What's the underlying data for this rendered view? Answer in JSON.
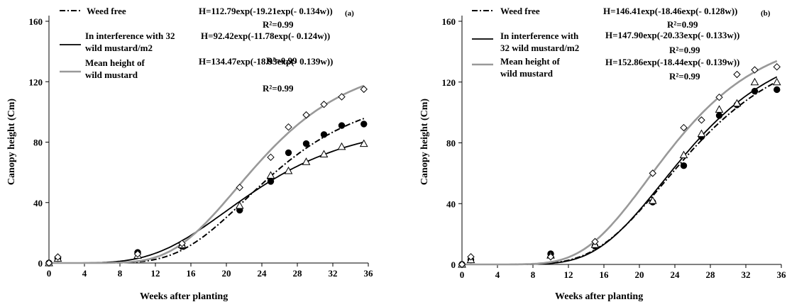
{
  "chart_data": [
    {
      "type": "line",
      "panel_label": "(a)",
      "xlabel": "Weeks after planting",
      "ylabel": "Canopy height (Cm)",
      "xlim": [
        0,
        36
      ],
      "ylim": [
        0,
        160
      ],
      "xticks": [
        "0",
        "4",
        "8",
        "12",
        "16",
        "20",
        "24",
        "28",
        "32",
        "36"
      ],
      "yticks": [
        "0",
        "40",
        "80",
        "120",
        "160"
      ],
      "grid": false,
      "series": [
        {
          "name": "Weed free",
          "line_style": "dash-dot",
          "color": "#000000",
          "marker": "filled-circle",
          "equation": "H=112.79exp(-19.21exp(- 0.134w))",
          "r2": "R²=0.99",
          "x": [
            0,
            1,
            10,
            15,
            21.5,
            25,
            27,
            29,
            31,
            33,
            35.5
          ],
          "y": [
            0,
            3,
            7,
            11,
            35,
            54,
            73,
            79,
            85,
            91,
            92
          ]
        },
        {
          "name": "In interference with 32 wild mustard/m2",
          "line_style": "solid",
          "color": "#000000",
          "marker": "open-triangle",
          "equation": "H=92.42exp(-11.78exp(- 0.124w))",
          "r2": "R²=0.99",
          "x": [
            0,
            1,
            10,
            15,
            21.5,
            25,
            27,
            29,
            31,
            33,
            35.5
          ],
          "y": [
            0,
            3,
            5,
            12,
            38,
            58,
            61,
            67,
            72,
            77,
            79
          ]
        },
        {
          "name": "Mean height of wild mustard",
          "line_style": "solid",
          "color": "#999999",
          "marker": "open-diamond",
          "equation": "H=134.47exp(-18.93exp(- 0.139w))",
          "r2": "R²=0.99",
          "x": [
            0,
            1,
            10,
            15,
            21.5,
            25,
            27,
            29,
            31,
            33,
            35.5
          ],
          "y": [
            0,
            4,
            6,
            13,
            50,
            70,
            90,
            98,
            105,
            110,
            115
          ]
        }
      ]
    },
    {
      "type": "line",
      "panel_label": "(b)",
      "xlabel": "Weeks after planting",
      "ylabel": "Canopy height (Cm)",
      "xlim": [
        0,
        36
      ],
      "ylim": [
        0,
        160
      ],
      "xticks": [
        "0",
        "4",
        "8",
        "12",
        "16",
        "20",
        "24",
        "28",
        "32",
        "36"
      ],
      "yticks": [
        "0",
        "40",
        "80",
        "120",
        "160"
      ],
      "grid": false,
      "series": [
        {
          "name": "Weed free",
          "line_style": "dash-dot",
          "color": "#000000",
          "marker": "filled-circle",
          "equation": "H=146.41exp(-18.46exp(- 0.128w))",
          "r2": "R²=0.99",
          "x": [
            0,
            1,
            10,
            15,
            21.5,
            25,
            27,
            29,
            31,
            33,
            35.5
          ],
          "y": [
            0,
            3,
            7,
            12,
            41,
            65,
            84,
            98,
            105,
            114,
            115
          ]
        },
        {
          "name": "In interference with 32 wild mustard/m2",
          "line_style": "solid",
          "color": "#000000",
          "marker": "open-triangle",
          "equation": "H=147.90exp(-20.33exp(- 0.133w))",
          "r2": "R²=0.99",
          "x": [
            0,
            1,
            10,
            15,
            21.5,
            25,
            27,
            29,
            31,
            33,
            35.5
          ],
          "y": [
            0,
            3,
            6,
            13,
            42,
            72,
            86,
            102,
            106,
            120,
            120
          ]
        },
        {
          "name": "Mean height of wild mustard",
          "line_style": "solid",
          "color": "#999999",
          "marker": "open-diamond",
          "equation": "H=152.86exp(-18.44exp(- 0.139w))",
          "r2": "R²=0.99",
          "x": [
            0,
            1,
            10,
            15,
            21.5,
            25,
            27,
            29,
            31,
            33,
            35.5
          ],
          "y": [
            0,
            5,
            5,
            15,
            60,
            90,
            95,
            110,
            125,
            128,
            130
          ]
        }
      ]
    }
  ]
}
